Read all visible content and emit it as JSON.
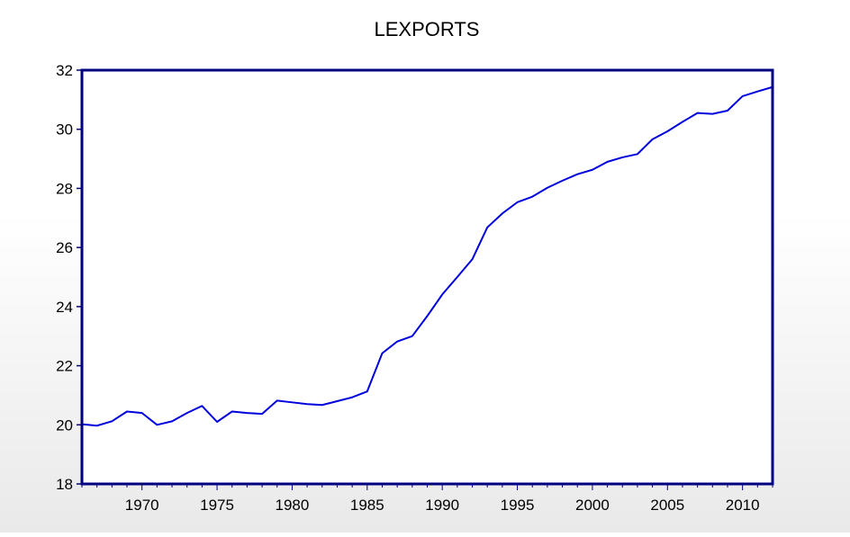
{
  "chart_data": {
    "type": "line",
    "title": "LEXPORTS",
    "xlabel": "",
    "ylabel": "",
    "xlim": [
      1966,
      2012
    ],
    "ylim": [
      18,
      32
    ],
    "y_ticks": [
      18,
      20,
      22,
      24,
      26,
      28,
      30,
      32
    ],
    "x_ticks": [
      1970,
      1975,
      1980,
      1985,
      1990,
      1995,
      2000,
      2005,
      2010
    ],
    "grid": false,
    "legend": "none",
    "line_color": "#0000dd",
    "frame_color": "#000080",
    "series": [
      {
        "x": [
          1966,
          1967,
          1968,
          1969,
          1970,
          1971,
          1972,
          1973,
          1974,
          1975,
          1976,
          1977,
          1978,
          1979,
          1980,
          1981,
          1982,
          1983,
          1984,
          1985,
          1986,
          1987,
          1988,
          1989,
          1990,
          1991,
          1992,
          1993,
          1994,
          1995,
          1996,
          1997,
          1998,
          1999,
          2000,
          2001,
          2002,
          2003,
          2004,
          2005,
          2006,
          2007,
          2008,
          2009,
          2010,
          2011,
          2012
        ],
        "values": [
          20.02,
          19.97,
          20.12,
          20.45,
          20.4,
          20.0,
          20.12,
          20.4,
          20.64,
          20.1,
          20.45,
          20.4,
          20.37,
          20.82,
          20.76,
          20.7,
          20.67,
          20.8,
          20.93,
          21.13,
          22.42,
          22.82,
          23.0,
          23.68,
          24.41,
          25.0,
          25.6,
          26.68,
          27.15,
          27.53,
          27.72,
          28.02,
          28.26,
          28.48,
          28.63,
          28.9,
          29.05,
          29.16,
          29.66,
          29.93,
          30.25,
          30.55,
          30.52,
          30.63,
          31.12,
          31.28,
          31.43
        ]
      }
    ]
  }
}
